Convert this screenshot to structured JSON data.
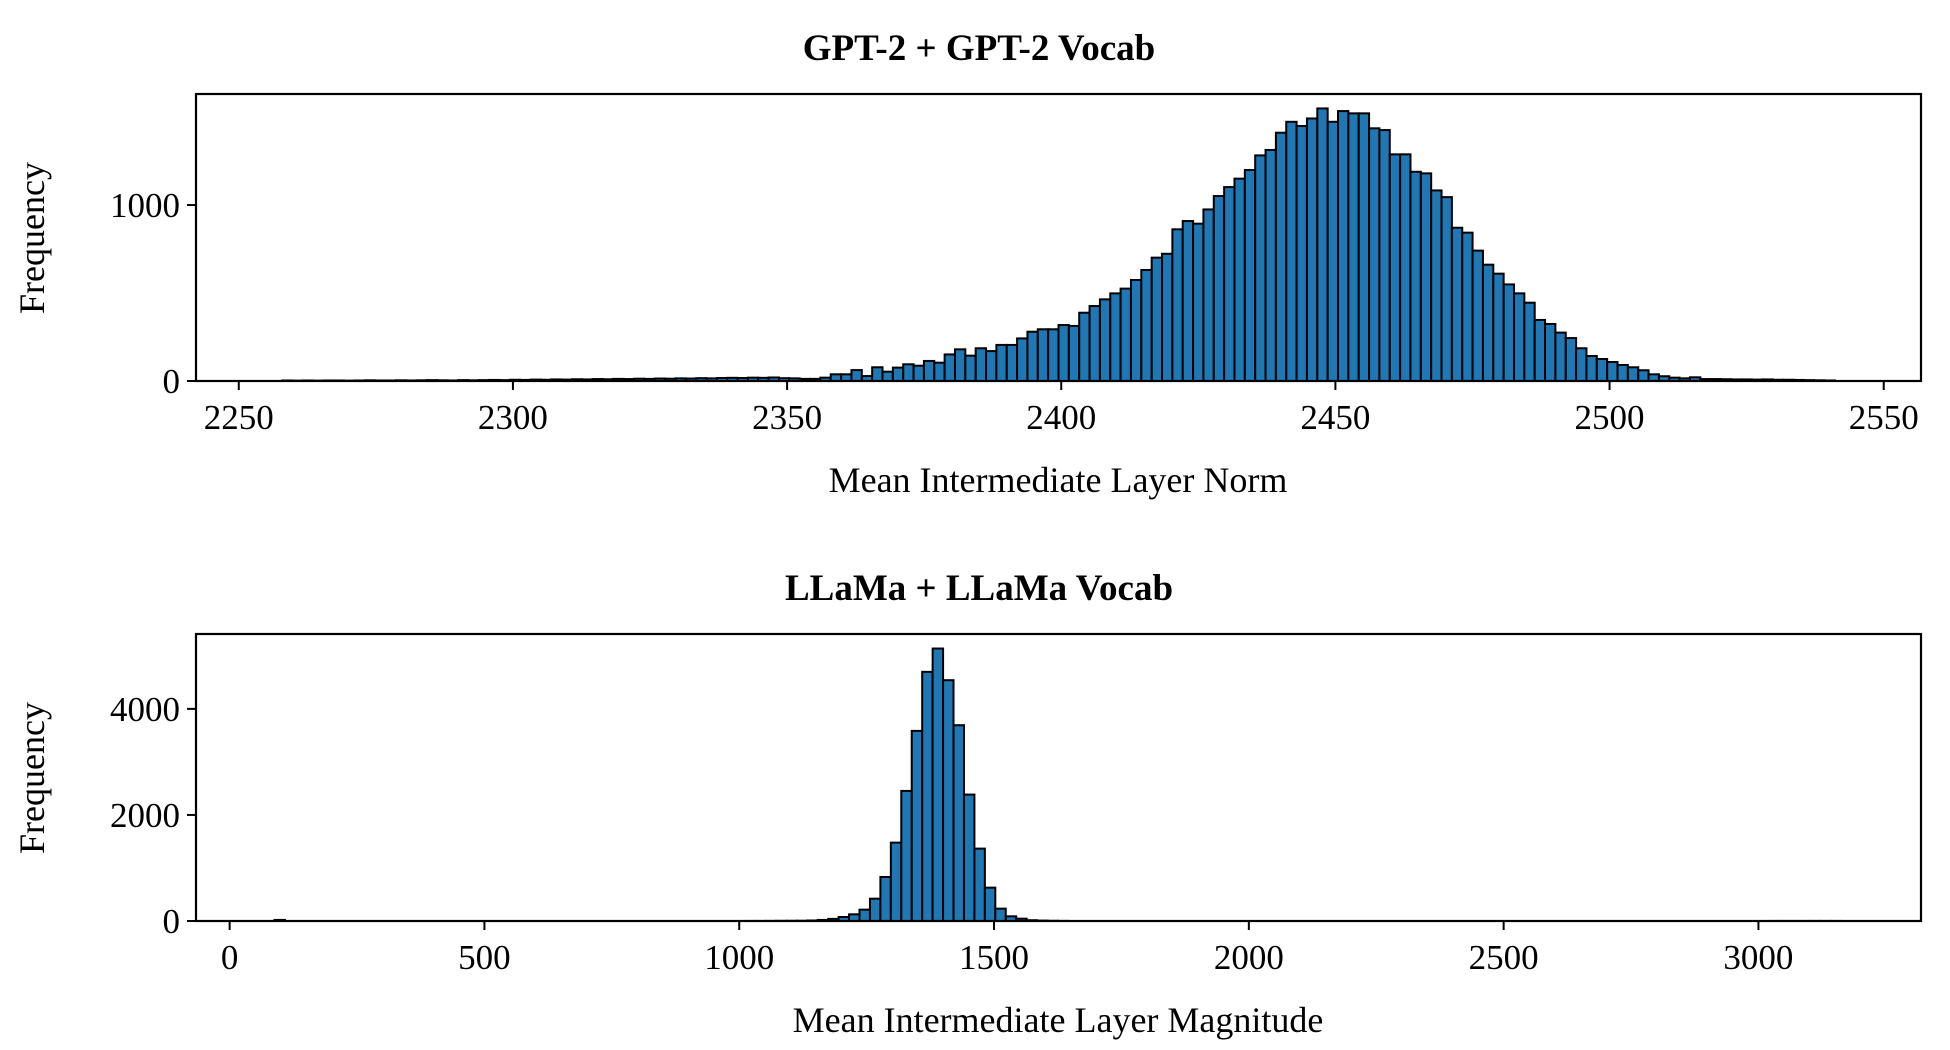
{
  "chart_data": [
    {
      "type": "bar",
      "subtype": "histogram",
      "title": "GPT-2 + GPT-2 Vocab",
      "xlabel": "Mean Intermediate Layer Norm",
      "ylabel": "Frequency",
      "xlim": [
        2242.2,
        2556.8
      ],
      "ylim": [
        0,
        1631
      ],
      "xticks": [
        2250,
        2300,
        2350,
        2400,
        2450,
        2500,
        2550
      ],
      "yticks": [
        0,
        1000
      ],
      "grid": false,
      "bar_color": "#1f77b4",
      "edge_color": "#000000",
      "bin_start": 2257.9,
      "bin_width": 1.888,
      "values": [
        3,
        2,
        3,
        2,
        3,
        3,
        2,
        3,
        4,
        3,
        3,
        4,
        3,
        4,
        5,
        4,
        3,
        5,
        4,
        5,
        6,
        5,
        7,
        6,
        8,
        7,
        9,
        8,
        10,
        9,
        11,
        10,
        12,
        11,
        13,
        12,
        14,
        13,
        15,
        14,
        16,
        15,
        17,
        18,
        17,
        19,
        18,
        20,
        16,
        15,
        12,
        12,
        19,
        38,
        38,
        62,
        28,
        78,
        53,
        76,
        95,
        87,
        114,
        104,
        151,
        180,
        144,
        186,
        170,
        205,
        205,
        242,
        280,
        294,
        294,
        318,
        313,
        388,
        426,
        464,
        498,
        525,
        574,
        631,
        701,
        723,
        862,
        909,
        894,
        975,
        1051,
        1102,
        1150,
        1199,
        1282,
        1313,
        1411,
        1473,
        1449,
        1492,
        1549,
        1473,
        1534,
        1521,
        1521,
        1436,
        1426,
        1288,
        1288,
        1189,
        1180,
        1083,
        1045,
        871,
        843,
        741,
        661,
        610,
        549,
        498,
        445,
        347,
        324,
        275,
        244,
        186,
        142,
        125,
        108,
        91,
        78,
        61,
        38,
        27,
        19,
        15,
        21,
        11,
        11,
        10,
        9,
        9,
        8,
        9,
        7,
        7,
        6,
        5,
        4,
        3
      ]
    },
    {
      "type": "bar",
      "subtype": "histogram",
      "title": "LLaMa + LLaMa Vocab",
      "xlabel": "Mean Intermediate Layer Magnitude",
      "ylabel": "Frequency",
      "xlim": [
        -66,
        3319
      ],
      "ylim": [
        0,
        5412
      ],
      "xticks": [
        0,
        500,
        1000,
        1500,
        2000,
        2500,
        3000
      ],
      "yticks": [
        0,
        2000,
        4000
      ],
      "grid": false,
      "bar_color": "#1f77b4",
      "edge_color": "#000000",
      "bin_start": 88,
      "bin_width": 20.5,
      "values": [
        20,
        0,
        0,
        0,
        0,
        0,
        0,
        0,
        0,
        0,
        0,
        0,
        0,
        0,
        0,
        0,
        0,
        0,
        0,
        0,
        0,
        0,
        0,
        0,
        0,
        0,
        0,
        0,
        0,
        0,
        0,
        0,
        0,
        0,
        0,
        0,
        0,
        0,
        0,
        0,
        0,
        0,
        0,
        0,
        0,
        1,
        1,
        2,
        3,
        4,
        5,
        10,
        20,
        40,
        75,
        126,
        214,
        421,
        830,
        1478,
        2453,
        3585,
        4698,
        5138,
        4541,
        3692,
        2384,
        1365,
        629,
        233,
        88,
        44,
        15,
        8,
        4,
        2,
        0,
        0,
        0,
        0,
        0,
        0,
        0,
        0,
        0,
        0,
        0,
        0,
        0,
        0,
        0,
        0,
        0,
        0,
        0,
        0,
        0,
        0,
        0,
        0,
        0,
        0,
        0,
        0,
        0,
        0,
        0,
        0,
        0,
        0,
        0,
        0,
        0,
        0,
        0,
        0,
        0,
        0,
        0,
        0,
        0,
        0,
        0,
        0,
        0,
        0,
        0,
        0,
        0,
        0,
        0,
        0,
        0,
        0,
        0,
        0,
        0,
        0,
        0,
        0,
        0,
        0,
        0,
        1,
        1,
        1,
        1,
        1,
        1,
        1
      ]
    }
  ]
}
